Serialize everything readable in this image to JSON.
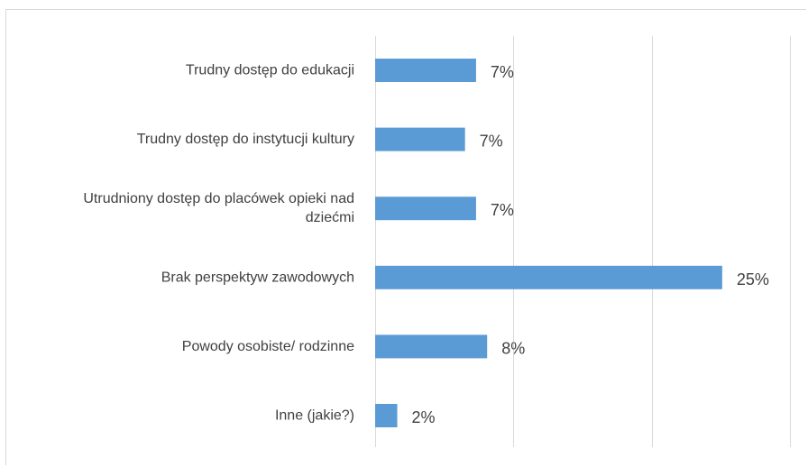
{
  "chart_data": {
    "type": "bar",
    "orientation": "horizontal",
    "categories": [
      "Trudny dostęp do edukacji",
      "Trudny dostęp do instytucji kultury",
      "Utrudniony dostęp do placówek opieki nad dziećmi",
      "Brak perspektyw zawodowych",
      "Powody osobiste/ rodzinne",
      "Inne (jakie?)"
    ],
    "category_lines": [
      [
        "Trudny dostęp do edukacji"
      ],
      [
        "Trudny dostęp do instytucji kultury"
      ],
      [
        "Utrudniony dostęp do placówek opieki nad",
        "dziećmi"
      ],
      [
        "Brak perspektyw zawodowych"
      ],
      [
        "Powody osobiste/ rodzinne"
      ],
      [
        "Inne (jakie?)"
      ]
    ],
    "values": [
      7.3,
      6.5,
      7.3,
      25.1,
      8.1,
      1.6
    ],
    "data_labels": [
      "7%",
      "7%",
      "7%",
      "25%",
      "8%",
      "2%"
    ],
    "xlim": [
      0,
      30
    ],
    "gridlines_at": [
      0,
      10,
      20,
      30
    ],
    "grid": true,
    "legend": "none",
    "bar_color": "#5b9bd5",
    "title": "",
    "xlabel": "",
    "ylabel": ""
  }
}
